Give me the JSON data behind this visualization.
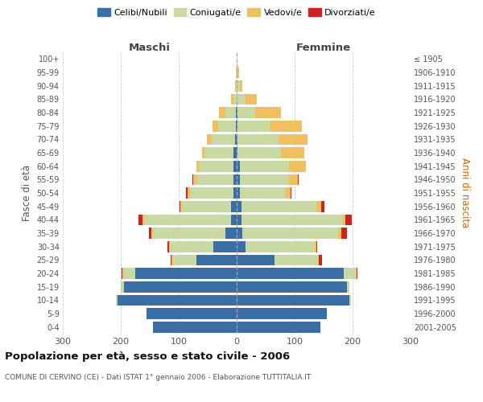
{
  "age_groups": [
    "0-4",
    "5-9",
    "10-14",
    "15-19",
    "20-24",
    "25-29",
    "30-34",
    "35-39",
    "40-44",
    "45-49",
    "50-54",
    "55-59",
    "60-64",
    "65-69",
    "70-74",
    "75-79",
    "80-84",
    "85-89",
    "90-94",
    "95-99",
    "100+"
  ],
  "birth_years": [
    "2001-2005",
    "1996-2000",
    "1991-1995",
    "1986-1990",
    "1981-1985",
    "1976-1980",
    "1971-1975",
    "1966-1970",
    "1961-1965",
    "1956-1960",
    "1951-1955",
    "1946-1950",
    "1941-1945",
    "1936-1940",
    "1931-1935",
    "1926-1930",
    "1921-1925",
    "1916-1920",
    "1911-1915",
    "1906-1910",
    "≤ 1905"
  ],
  "males": {
    "celibi": [
      145,
      155,
      205,
      195,
      175,
      70,
      40,
      20,
      10,
      10,
      5,
      5,
      5,
      5,
      3,
      2,
      2,
      0,
      0,
      0,
      0
    ],
    "coniugati": [
      0,
      0,
      3,
      5,
      20,
      40,
      75,
      125,
      150,
      85,
      75,
      65,
      60,
      50,
      40,
      30,
      18,
      5,
      1,
      1,
      0
    ],
    "vedovi": [
      0,
      0,
      0,
      0,
      2,
      2,
      2,
      2,
      2,
      2,
      5,
      5,
      5,
      5,
      8,
      10,
      10,
      5,
      2,
      0,
      0
    ],
    "divorziati": [
      0,
      0,
      0,
      0,
      2,
      2,
      2,
      5,
      8,
      2,
      2,
      2,
      0,
      0,
      0,
      0,
      0,
      0,
      0,
      0,
      0
    ]
  },
  "females": {
    "nubili": [
      145,
      155,
      195,
      190,
      185,
      65,
      15,
      10,
      8,
      8,
      5,
      5,
      5,
      2,
      2,
      2,
      2,
      0,
      0,
      0,
      0
    ],
    "coniugate": [
      0,
      0,
      2,
      5,
      20,
      75,
      120,
      165,
      175,
      130,
      80,
      85,
      85,
      75,
      70,
      55,
      30,
      15,
      5,
      2,
      0
    ],
    "vedove": [
      0,
      0,
      0,
      0,
      2,
      2,
      2,
      5,
      5,
      8,
      8,
      15,
      30,
      40,
      50,
      55,
      45,
      20,
      5,
      2,
      0
    ],
    "divorziate": [
      0,
      0,
      0,
      0,
      2,
      5,
      2,
      10,
      10,
      5,
      2,
      2,
      0,
      0,
      0,
      0,
      0,
      0,
      0,
      0,
      0
    ]
  },
  "colors": {
    "celibi_nubili": "#3a6ea5",
    "coniugati": "#c8d9a4",
    "vedovi": "#f0c060",
    "divorziati": "#cc2222"
  },
  "xlim": 300,
  "title": "Popolazione per età, sesso e stato civile - 2006",
  "subtitle": "COMUNE DI CERVINO (CE) - Dati ISTAT 1° gennaio 2006 - Elaborazione TUTTITALIA.IT",
  "ylabel_left": "Fasce di età",
  "ylabel_right": "Anni di nascita",
  "xlabel_left": "Maschi",
  "xlabel_right": "Femmine",
  "legend_labels": [
    "Celibi/Nubili",
    "Coniugati/e",
    "Vedovi/e",
    "Divorziati/e"
  ]
}
